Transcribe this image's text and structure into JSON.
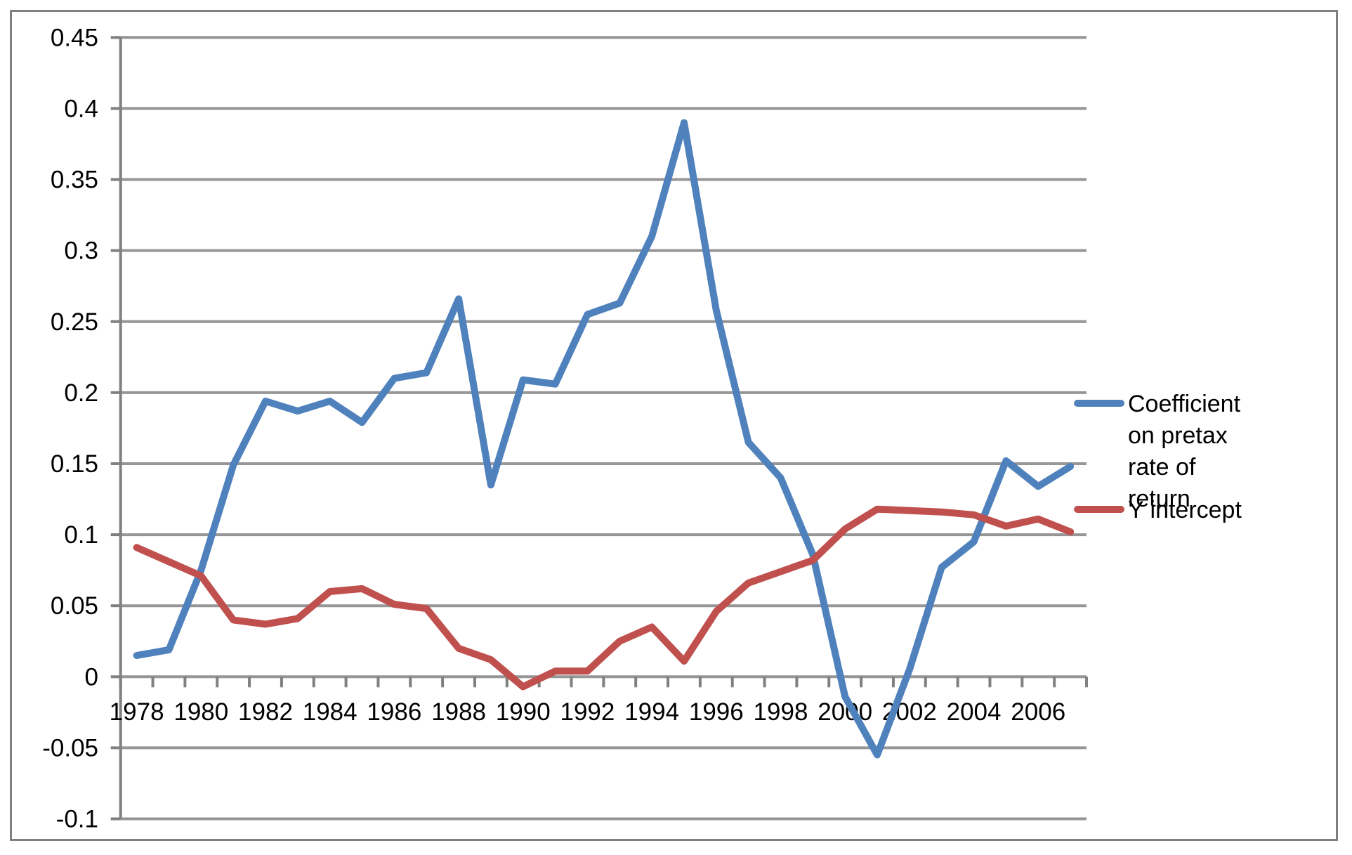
{
  "chart_data": {
    "type": "line",
    "x": [
      1978,
      1979,
      1980,
      1981,
      1982,
      1983,
      1984,
      1985,
      1986,
      1987,
      1988,
      1989,
      1990,
      1991,
      1992,
      1993,
      1994,
      1995,
      1996,
      1997,
      1998,
      1999,
      2000,
      2001,
      2002,
      2003,
      2004,
      2005,
      2006,
      2007
    ],
    "series": [
      {
        "name": "Coefficient on pretax rate of return",
        "color": "#4F81BD",
        "values": [
          0.015,
          0.019,
          0.075,
          0.149,
          0.194,
          0.187,
          0.194,
          0.179,
          0.21,
          0.214,
          0.266,
          0.135,
          0.209,
          0.206,
          0.255,
          0.263,
          0.31,
          0.39,
          0.258,
          0.165,
          0.14,
          0.086,
          -0.014,
          -0.055,
          0.005,
          0.077,
          0.095,
          0.152,
          0.134,
          0.148
        ]
      },
      {
        "name": "Y intercept",
        "color": "#C0504D",
        "values": [
          0.091,
          0.081,
          0.071,
          0.04,
          0.037,
          0.041,
          0.06,
          0.062,
          0.051,
          0.048,
          0.02,
          0.012,
          -0.007,
          0.004,
          0.004,
          0.025,
          0.035,
          0.011,
          0.046,
          0.066,
          0.074,
          0.082,
          0.104,
          0.118,
          0.117,
          0.116,
          0.114,
          0.106,
          0.111,
          0.102
        ]
      }
    ],
    "title": "",
    "xlabel": "",
    "ylabel": "",
    "ylim": [
      -0.1,
      0.45
    ],
    "grid": true,
    "legend_position": "right",
    "yticks": [
      {
        "v": 0.45,
        "label": "0.45"
      },
      {
        "v": 0.4,
        "label": "0.4"
      },
      {
        "v": 0.35,
        "label": "0.35"
      },
      {
        "v": 0.3,
        "label": "0.3"
      },
      {
        "v": 0.25,
        "label": "0.25"
      },
      {
        "v": 0.2,
        "label": "0.2"
      },
      {
        "v": 0.15,
        "label": "0.15"
      },
      {
        "v": 0.1,
        "label": "0.1"
      },
      {
        "v": 0.05,
        "label": "0.05"
      },
      {
        "v": 0,
        "label": "0"
      },
      {
        "v": -0.05,
        "label": "-0.05"
      },
      {
        "v": -0.1,
        "label": "-0.1"
      }
    ],
    "xtick_labels": [
      "1978",
      "1980",
      "1982",
      "1984",
      "1986",
      "1988",
      "1990",
      "1992",
      "1994",
      "1996",
      "1998",
      "2000",
      "2002",
      "2004",
      "2006"
    ],
    "colors": {
      "grid": "#969696",
      "axis": "#808080",
      "border": "#7F7F7F",
      "series1": "#4F81BD",
      "series2": "#C0504D",
      "text": "#000000"
    }
  }
}
